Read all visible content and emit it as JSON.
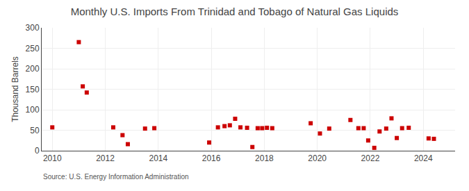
{
  "chart_data": {
    "type": "scatter",
    "title": "Monthly U.S. Imports From Trinidad and Tobago of Natural Gas Liquids",
    "ylabel": "Thousand Barrels",
    "source": "Source: U.S. Energy Information Administration",
    "color": "#cc0000",
    "marker": "square",
    "grid": true,
    "xlim": [
      2009.6,
      2025.2
    ],
    "ylim": [
      0,
      300
    ],
    "xticks": [
      2010,
      2012,
      2014,
      2016,
      2018,
      2020,
      2022,
      2024
    ],
    "yticks": [
      0,
      50,
      100,
      150,
      200,
      250,
      300
    ],
    "x": [
      2010.0,
      2011.0,
      2011.15,
      2011.3,
      2012.3,
      2012.65,
      2012.85,
      2013.5,
      2013.85,
      2015.92,
      2016.25,
      2016.5,
      2016.7,
      2016.9,
      2017.1,
      2017.35,
      2017.55,
      2017.75,
      2017.92,
      2018.1,
      2018.3,
      2019.75,
      2020.1,
      2020.45,
      2021.25,
      2021.55,
      2021.75,
      2021.92,
      2022.15,
      2022.35,
      2022.6,
      2022.8,
      2023.0,
      2023.2,
      2023.45,
      2024.2,
      2024.4
    ],
    "values": [
      57,
      265,
      157,
      142,
      57,
      38,
      16,
      54,
      55,
      20,
      57,
      60,
      62,
      78,
      57,
      56,
      9,
      55,
      55,
      56,
      55,
      67,
      42,
      54,
      75,
      55,
      55,
      25,
      7,
      47,
      54,
      79,
      31,
      55,
      56,
      30,
      29
    ]
  }
}
